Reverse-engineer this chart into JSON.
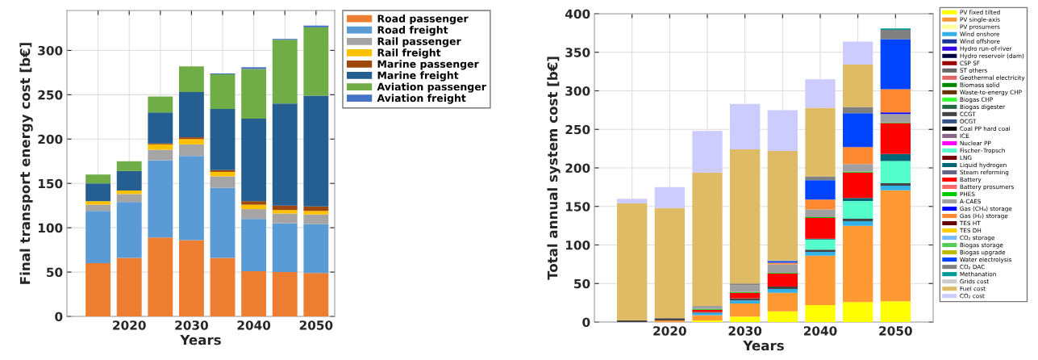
{
  "chart_data": [
    {
      "type": "bar",
      "stacked": true,
      "xlabel": "Years",
      "ylabel": "Final transport energy cost [b€]",
      "x": [
        2015,
        2020,
        2025,
        2030,
        2035,
        2040,
        2045,
        2050
      ],
      "xlim": [
        2010,
        2053
      ],
      "xticks": [
        {
          "value": 2015,
          "label": null
        },
        2020,
        {
          "value": 2025,
          "label": null
        },
        2030,
        {
          "value": 2035,
          "label": null
        },
        2040,
        {
          "value": 2045,
          "label": null
        },
        2050
      ],
      "ylim": [
        0,
        345
      ],
      "yticks": [
        0,
        50,
        100,
        150,
        200,
        250,
        300
      ],
      "grid": true,
      "legend": "top right",
      "series": [
        {
          "name": "Road passenger",
          "color": "#ed7d31",
          "values": [
            60,
            66,
            89,
            86,
            66,
            51,
            50,
            49
          ]
        },
        {
          "name": "Road freight",
          "color": "#5b9bd5",
          "values": [
            59,
            63,
            87,
            95,
            79,
            59,
            55,
            55
          ]
        },
        {
          "name": "Rail passenger",
          "color": "#a5a5a5",
          "values": [
            7,
            9,
            12,
            13,
            13,
            11,
            11,
            11
          ]
        },
        {
          "name": "Rail freight",
          "color": "#ffc000",
          "values": [
            4,
            4,
            6,
            6,
            5,
            5,
            4,
            4
          ]
        },
        {
          "name": "Marine passenger",
          "color": "#9e480e",
          "values": [
            0,
            0,
            1,
            2,
            2,
            4,
            5,
            5
          ]
        },
        {
          "name": "Marine freight",
          "color": "#255e91",
          "values": [
            20,
            22,
            35,
            51,
            69,
            93,
            115,
            125
          ]
        },
        {
          "name": "Aviation passenger",
          "color": "#70ad47",
          "values": [
            10,
            11,
            18,
            29,
            39,
            56,
            72,
            77
          ]
        },
        {
          "name": "Aviation freight",
          "color": "#4472c4",
          "values": [
            0,
            0,
            0,
            0,
            1,
            2,
            1,
            2
          ]
        }
      ]
    },
    {
      "type": "bar",
      "stacked": true,
      "xlabel": "Years",
      "ylabel": "Total annual system cost [b€]",
      "x": [
        2015,
        2020,
        2025,
        2030,
        2035,
        2040,
        2045,
        2050
      ],
      "xlim": [
        2010,
        2055
      ],
      "xticks": [
        {
          "value": 2015,
          "label": null
        },
        2020,
        {
          "value": 2025,
          "label": null
        },
        2030,
        {
          "value": 2035,
          "label": null
        },
        2040,
        {
          "value": 2045,
          "label": null
        },
        2050
      ],
      "ylim": [
        0,
        400
      ],
      "yticks": [
        0,
        50,
        100,
        150,
        200,
        250,
        300,
        350,
        400
      ],
      "grid": true,
      "legend": "right",
      "series": [
        {
          "name": "PV fixed tilted",
          "color": "#ffff00",
          "values": [
            0,
            0,
            2,
            7,
            14,
            22,
            26,
            27
          ]
        },
        {
          "name": "PV single-axis",
          "color": "#ff9933",
          "values": [
            0,
            2,
            7,
            17,
            24,
            64,
            99,
            144
          ]
        },
        {
          "name": "PV prosumers",
          "color": "#ffff99",
          "values": [
            0,
            0,
            0,
            0,
            0,
            0,
            0,
            0
          ]
        },
        {
          "name": "Wind onshore",
          "color": "#33b0e6",
          "values": [
            0,
            0,
            3,
            4,
            5,
            5,
            6,
            6
          ]
        },
        {
          "name": "Wind offshore",
          "color": "#1a3399",
          "values": [
            0,
            0,
            0,
            0,
            0,
            0,
            0,
            0
          ]
        },
        {
          "name": "Hydro run-of-river",
          "color": "#3300e6",
          "values": [
            0,
            0,
            0,
            0,
            0,
            0,
            0,
            0
          ]
        },
        {
          "name": "Hydro reservoir (dam)",
          "color": "#000044",
          "values": [
            0,
            0,
            0,
            0,
            0,
            0,
            0,
            0
          ]
        },
        {
          "name": "CSP SF",
          "color": "#990000",
          "values": [
            0,
            0,
            0,
            0,
            0,
            0,
            0,
            0
          ]
        },
        {
          "name": "ST others",
          "color": "#666666",
          "values": [
            0,
            0,
            0,
            0,
            0,
            0,
            0,
            0
          ]
        },
        {
          "name": "Geothermal electricity",
          "color": "#e06666",
          "values": [
            0,
            0,
            0,
            0,
            0,
            0,
            0,
            0
          ]
        },
        {
          "name": "Biomass solid",
          "color": "#008800",
          "values": [
            0,
            0,
            0,
            0,
            0,
            0,
            0,
            0
          ]
        },
        {
          "name": "Waste-to-energy CHP",
          "color": "#663300",
          "values": [
            0,
            0,
            0,
            0,
            0,
            0,
            0,
            0
          ]
        },
        {
          "name": "Biogas CHP",
          "color": "#33ff33",
          "values": [
            0,
            0,
            0,
            0,
            0,
            0,
            0,
            0
          ]
        },
        {
          "name": "Biogas digester",
          "color": "#226644",
          "values": [
            0,
            0,
            0,
            0,
            0,
            0,
            0,
            0
          ]
        },
        {
          "name": "CCGT",
          "color": "#444444",
          "values": [
            2,
            3,
            1,
            3,
            3,
            3,
            3,
            3
          ]
        },
        {
          "name": "OCGT",
          "color": "#335588",
          "values": [
            0,
            0,
            0,
            0,
            0,
            0,
            0,
            0
          ]
        },
        {
          "name": "Coal PP hard coal",
          "color": "#000000",
          "values": [
            0,
            0,
            0,
            0,
            0,
            0,
            0,
            0
          ]
        },
        {
          "name": "ICE",
          "color": "#886688",
          "values": [
            0,
            0,
            0,
            0,
            0,
            0,
            0,
            0
          ]
        },
        {
          "name": "Nuclear PP",
          "color": "#ff00ff",
          "values": [
            0,
            0,
            0,
            0,
            0,
            0,
            0,
            0
          ]
        },
        {
          "name": "Fischer–Tropsch",
          "color": "#55ffcc",
          "values": [
            0,
            0,
            0,
            0,
            0,
            13,
            23,
            29
          ]
        },
        {
          "name": "LNG",
          "color": "#770000",
          "values": [
            0,
            0,
            0,
            0,
            0,
            0,
            0,
            0
          ]
        },
        {
          "name": "Liquid hydrogen",
          "color": "#006677",
          "values": [
            0,
            0,
            0,
            0,
            0,
            1,
            4,
            9
          ]
        },
        {
          "name": "Steam reforming",
          "color": "#666688",
          "values": [
            0,
            0,
            0,
            0,
            0,
            0,
            0,
            0
          ]
        },
        {
          "name": "Battery",
          "color": "#ff0000",
          "values": [
            0,
            0,
            3,
            7,
            17,
            27,
            33,
            40
          ]
        },
        {
          "name": "Battery prosumers",
          "color": "#ff6666",
          "values": [
            0,
            0,
            0,
            0,
            0,
            0,
            0,
            0
          ]
        },
        {
          "name": "PHES",
          "color": "#00cc00",
          "values": [
            0,
            0,
            1,
            1,
            1,
            1,
            1,
            1
          ]
        },
        {
          "name": "A-CAES",
          "color": "#a0a0a0",
          "values": [
            0,
            0,
            4,
            9,
            11,
            10,
            10,
            11
          ]
        },
        {
          "name": "Gas (CH₄) storage",
          "color": "#0000ff",
          "values": [
            0,
            0,
            0,
            0,
            0,
            0,
            0,
            2
          ]
        },
        {
          "name": "Gas (H₂) storage",
          "color": "#ff8833",
          "values": [
            0,
            0,
            0,
            0,
            2,
            13,
            22,
            30
          ]
        },
        {
          "name": "TES HT",
          "color": "#660000",
          "values": [
            0,
            0,
            0,
            0,
            0,
            0,
            0,
            0
          ]
        },
        {
          "name": "TES DH",
          "color": "#ffcc00",
          "values": [
            0,
            0,
            0,
            0,
            0,
            0,
            0,
            0
          ]
        },
        {
          "name": "CO₂ storage",
          "color": "#77bbff",
          "values": [
            0,
            0,
            0,
            0,
            0,
            0,
            0,
            0
          ]
        },
        {
          "name": "Biogas storage",
          "color": "#55cc55",
          "values": [
            0,
            0,
            0,
            0,
            0,
            0,
            0,
            0
          ]
        },
        {
          "name": "Biogas upgrade",
          "color": "#bbbb00",
          "values": [
            0,
            0,
            0,
            0,
            0,
            0,
            0,
            0
          ]
        },
        {
          "name": "Water electrolysis",
          "color": "#0044ff",
          "values": [
            0,
            0,
            0,
            0,
            2,
            25,
            44,
            65
          ]
        },
        {
          "name": "CO₂ DAC",
          "color": "#808080",
          "values": [
            0,
            0,
            0,
            2,
            1,
            5,
            8,
            12
          ]
        },
        {
          "name": "Methanation",
          "color": "#009999",
          "values": [
            0,
            0,
            0,
            0,
            0,
            0,
            0,
            2
          ]
        },
        {
          "name": "Grids cost",
          "color": "#cccccc",
          "values": [
            0,
            0,
            0,
            0,
            0,
            0,
            0,
            0
          ]
        },
        {
          "name": "Fuel cost",
          "color": "#e0bb66",
          "values": [
            152,
            143,
            173,
            174,
            142,
            89,
            55,
            0
          ]
        },
        {
          "name": "CO₂ cost",
          "color": "#ccccff",
          "values": [
            6,
            27,
            54,
            59,
            53,
            37,
            30,
            0
          ]
        }
      ]
    }
  ]
}
